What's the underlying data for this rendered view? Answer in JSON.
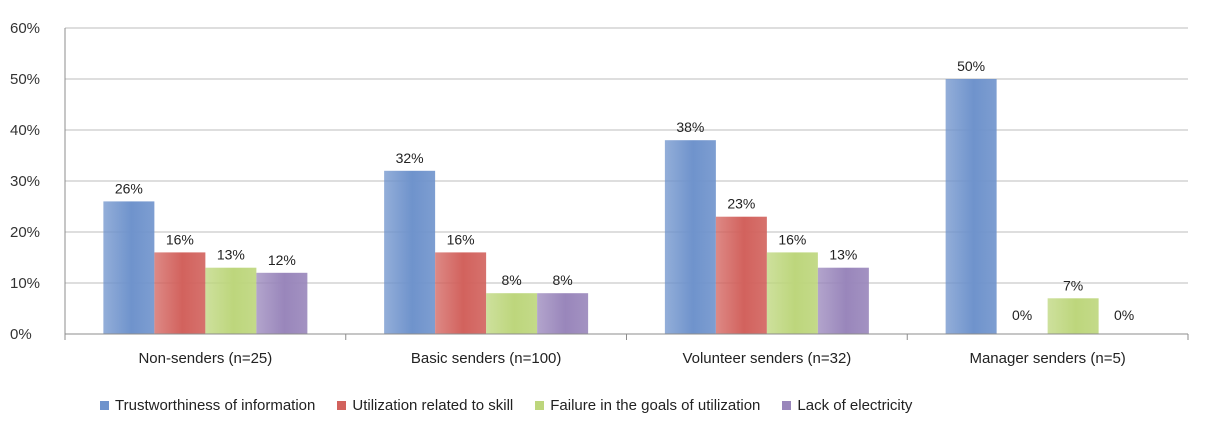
{
  "chart_data": {
    "type": "bar",
    "categories": [
      "Non-senders (n=25)",
      "Basic senders (n=100)",
      "Volunteer senders (n=32)",
      "Manager senders (n=5)"
    ],
    "series": [
      {
        "name": "Trustworthiness of information",
        "values": [
          26,
          32,
          38,
          50
        ],
        "color": "#6f93cc"
      },
      {
        "name": "Utilization related to skill",
        "values": [
          16,
          16,
          23,
          0
        ],
        "color": "#d2625d"
      },
      {
        "name": "Failure in the goals of utilization",
        "values": [
          13,
          8,
          16,
          7
        ],
        "color": "#bdd67c"
      },
      {
        "name": "Lack of electricity",
        "values": [
          12,
          8,
          13,
          0
        ],
        "color": "#9986bb"
      }
    ],
    "data_labels": [
      [
        "26%",
        "16%",
        "13%",
        "12%"
      ],
      [
        "32%",
        "16%",
        "8%",
        "8%"
      ],
      [
        "38%",
        "23%",
        "16%",
        "13%"
      ],
      [
        "50%",
        "0%",
        "7%",
        "0%"
      ]
    ],
    "y_ticks": [
      "0%",
      "10%",
      "20%",
      "30%",
      "40%",
      "50%",
      "60%"
    ],
    "ylim": [
      0,
      60
    ],
    "grid": true,
    "legend_position": "bottom",
    "title": "",
    "xlabel": "",
    "ylabel": ""
  }
}
